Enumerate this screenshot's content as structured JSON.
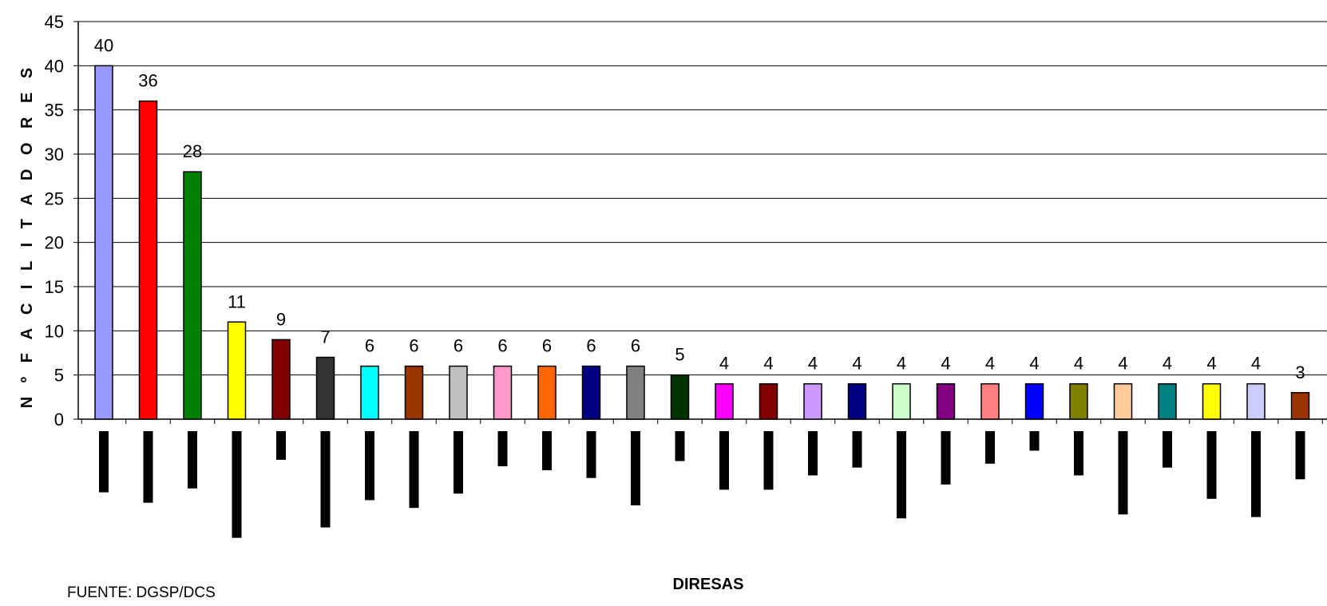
{
  "chart_data": {
    "type": "bar",
    "ylabel": "N º F A C I L I T A D O R E S",
    "xlabel": "DIRESAS",
    "source": "FUENTE: DGSP/DCS",
    "ylim": [
      0,
      45
    ],
    "yticks": [
      0,
      5,
      10,
      15,
      20,
      25,
      30,
      35,
      40,
      45
    ],
    "grid": true,
    "values": [
      40,
      36,
      28,
      11,
      9,
      7,
      6,
      6,
      6,
      6,
      6,
      6,
      6,
      5,
      4,
      4,
      4,
      4,
      4,
      4,
      4,
      4,
      4,
      4,
      4,
      4,
      4,
      3
    ],
    "colors": [
      "#9999ff",
      "#ff0000",
      "#008000",
      "#ffff00",
      "#800000",
      "#333333",
      "#00ffff",
      "#993300",
      "#c0c0c0",
      "#ff99cc",
      "#ff6600",
      "#000080",
      "#808080",
      "#003300",
      "#ff00ff",
      "#800000",
      "#cc99ff",
      "#000080",
      "#ccffcc",
      "#800080",
      "#ff8080",
      "#0000ff",
      "#808000",
      "#ffcc99",
      "#008080",
      "#ffff00",
      "#ccccff",
      "#993300"
    ],
    "category_label_marks": [
      0.47,
      0.55,
      0.44,
      0.82,
      0.22,
      0.74,
      0.53,
      0.59,
      0.48,
      0.27,
      0.3,
      0.36,
      0.57,
      0.23,
      0.45,
      0.45,
      0.34,
      0.28,
      0.67,
      0.41,
      0.25,
      0.15,
      0.34,
      0.64,
      0.28,
      0.52,
      0.66,
      0.37
    ]
  }
}
